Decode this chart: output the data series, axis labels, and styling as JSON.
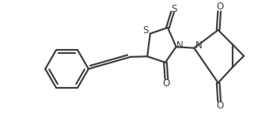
{
  "bg_color": "#ffffff",
  "line_color": "#404040",
  "line_width": 1.6,
  "figsize": [
    3.45,
    1.63
  ],
  "dpi": 100,
  "xlim": [
    0.0,
    10.5
  ],
  "ylim": [
    -0.3,
    5.0
  ]
}
